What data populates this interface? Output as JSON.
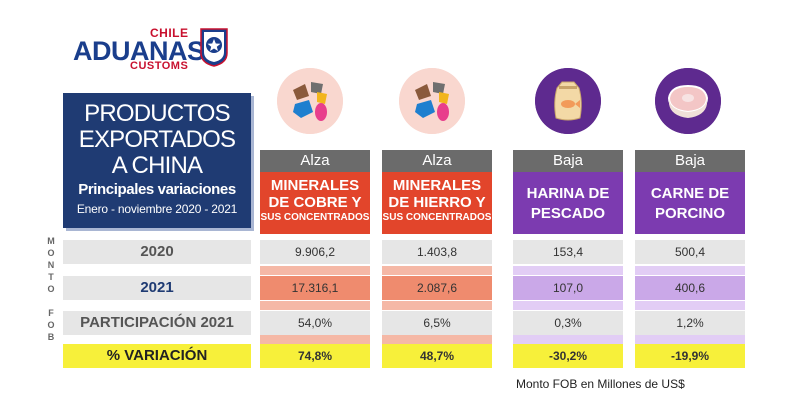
{
  "logo": {
    "top": "CHILE",
    "main": "ADUANAS",
    "bottom": "CUSTOMS"
  },
  "title": {
    "line1": "PRODUCTOS",
    "line2": "EXPORTADOS",
    "line3": "A CHINA",
    "subtitle": "Principales variaciones",
    "date_range": "Enero - noviembre 2020 - 2021"
  },
  "side_label": "MONTO FOB",
  "rows": {
    "y2020": "2020",
    "y2021": "2021",
    "participation": "PARTICIPACIÓN 2021",
    "variation": "% VARIACIÓN"
  },
  "products": [
    {
      "trend": "Alza",
      "name_main": "MINERALES DE COBRE Y",
      "name_sub": "SUS CONCENTRADOS",
      "icon": "minerals-icon",
      "v2020": "9.906,2",
      "v2021": "17.316,1",
      "participation": "54,0%",
      "variation": "74,8%"
    },
    {
      "trend": "Alza",
      "name_main": "MINERALES DE HIERRO Y",
      "name_sub": "SUS CONCENTRADOS",
      "icon": "minerals-icon",
      "v2020": "1.403,8",
      "v2021": "2.087,6",
      "participation": "6,5%",
      "variation": "48,7%"
    },
    {
      "trend": "Baja",
      "name_main": "HARINA DE PESCADO",
      "name_sub": "",
      "icon": "fish-flour-sack-icon",
      "v2020": "153,4",
      "v2021": "107,0",
      "participation": "0,3%",
      "variation": "-30,2%"
    },
    {
      "trend": "Baja",
      "name_main": "CARNE DE PORCINO",
      "name_sub": "",
      "icon": "pork-meat-icon",
      "v2020": "500,4",
      "v2021": "400,6",
      "participation": "1,2%",
      "variation": "-19,9%"
    }
  ],
  "colors": {
    "alza_header": "#e2452b",
    "baja_header": "#7c3bb0",
    "alza_2021_row": "#ef8b6e",
    "baja_2021_row": "#caa8e8",
    "variation_row": "#f7f03a",
    "title_panel": "#1f3b73"
  },
  "footnote": "Monto FOB en Millones de US$"
}
